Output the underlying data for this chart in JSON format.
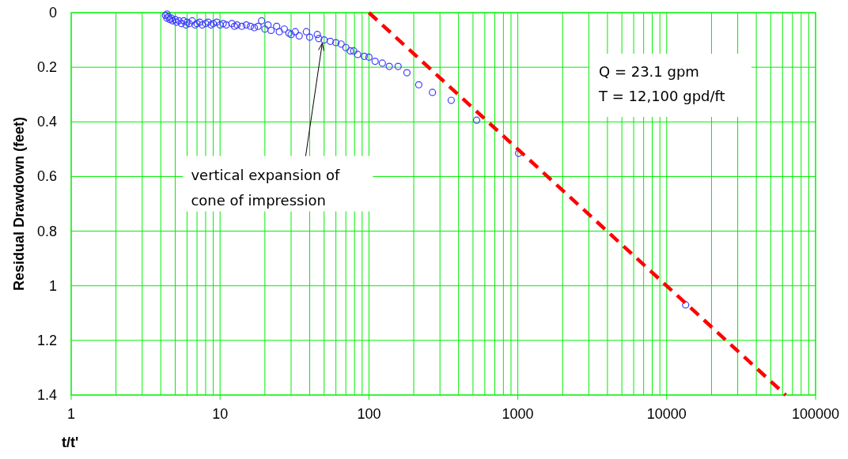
{
  "chart_data": {
    "type": "scatter",
    "xlabel": "t/t'",
    "ylabel": "Residual Drawdown (feet)",
    "log": "x",
    "grid": true,
    "xlim": [
      1,
      100000
    ],
    "xticks": [
      1,
      10,
      100,
      1000,
      10000,
      100000
    ],
    "ylim": [
      1.4,
      0
    ],
    "yticks": [
      0,
      0.2,
      0.4,
      0.6,
      0.8,
      1,
      1.2,
      1.4
    ],
    "series": [
      {
        "color": "#3c3cff",
        "marker": "circle",
        "x": [
          4.3,
          4.4,
          4.4,
          4.5,
          4.6,
          4.7,
          4.8,
          5.0,
          5.1,
          5.3,
          5.5,
          5.7,
          5.9,
          6.0,
          6.2,
          6.5,
          6.8,
          7.0,
          7.3,
          7.6,
          8.0,
          8.3,
          8.7,
          9.0,
          9.5,
          10,
          10.5,
          11,
          12,
          12.5,
          13,
          14,
          15,
          16,
          17,
          18,
          19,
          20,
          21,
          22,
          24,
          25,
          27,
          29,
          30,
          32,
          34,
          38,
          40,
          45,
          46,
          50,
          55,
          60,
          65,
          70,
          75,
          79,
          84,
          93,
          100,
          110,
          123,
          137,
          157,
          180,
          216,
          267,
          357,
          529,
          1012,
          13400
        ],
        "values": [
          0.01,
          0.02,
          0.005,
          0.015,
          0.025,
          0.02,
          0.03,
          0.025,
          0.035,
          0.03,
          0.04,
          0.03,
          0.045,
          0.035,
          0.04,
          0.03,
          0.045,
          0.04,
          0.035,
          0.045,
          0.04,
          0.035,
          0.045,
          0.04,
          0.035,
          0.045,
          0.04,
          0.045,
          0.04,
          0.05,
          0.045,
          0.05,
          0.045,
          0.05,
          0.055,
          0.05,
          0.03,
          0.06,
          0.045,
          0.065,
          0.05,
          0.07,
          0.06,
          0.075,
          0.08,
          0.07,
          0.085,
          0.07,
          0.09,
          0.08,
          0.095,
          0.1,
          0.105,
          0.11,
          0.115,
          0.128,
          0.14,
          0.14,
          0.153,
          0.16,
          0.163,
          0.178,
          0.185,
          0.197,
          0.197,
          0.22,
          0.264,
          0.292,
          0.321,
          0.394,
          0.515,
          1.07
        ]
      },
      {
        "type": "line",
        "color": "#ff0000",
        "line_style": "dashed",
        "x": [
          100,
          63000
        ],
        "values": [
          0,
          1.4
        ]
      }
    ],
    "annotations": [
      {
        "text": "vertical expansion of\ncone of impression",
        "x": 48,
        "y": 0.1
      },
      "Q = 23.1 gpm\nT = 12,100 gpd/ft"
    ]
  }
}
